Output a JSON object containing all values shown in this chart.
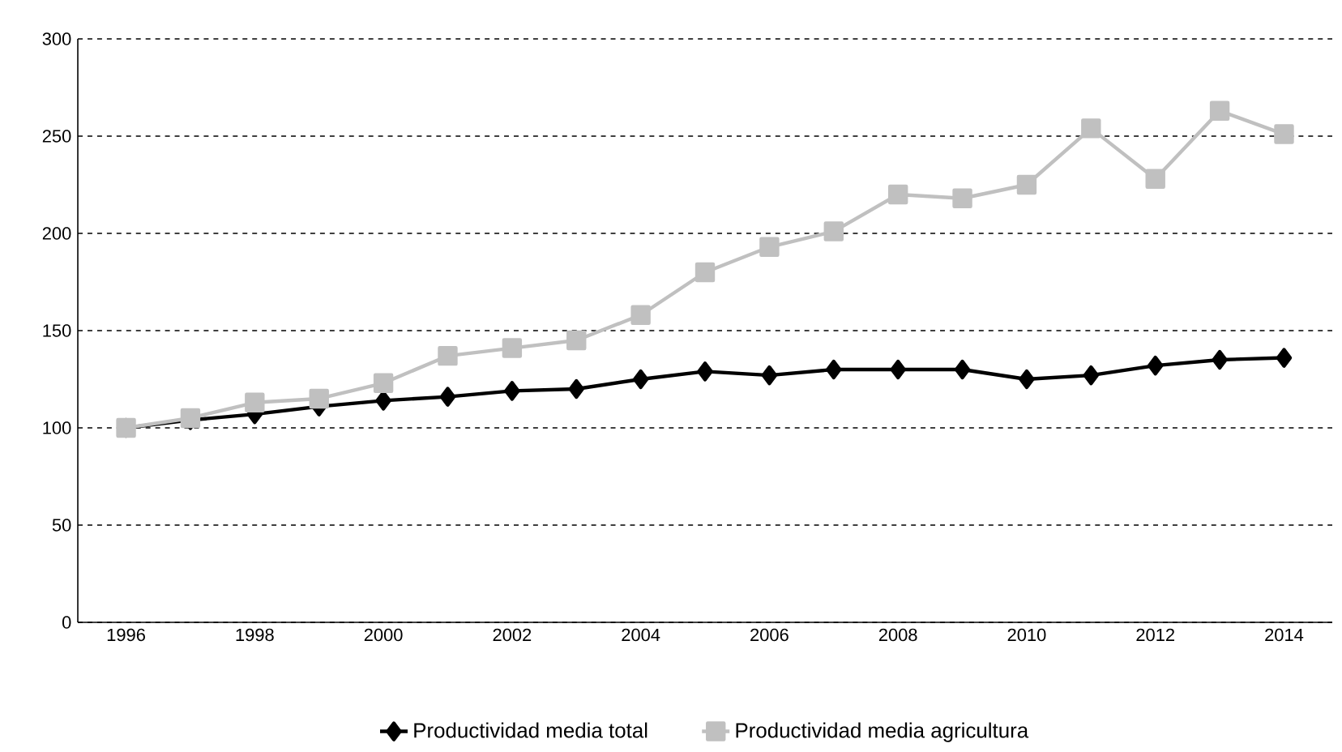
{
  "chart_data": {
    "type": "line",
    "x": [
      1996,
      1997,
      1998,
      1999,
      2000,
      2001,
      2002,
      2003,
      2004,
      2005,
      2006,
      2007,
      2008,
      2009,
      2010,
      2011,
      2012,
      2013,
      2014
    ],
    "series": [
      {
        "name": "Productividad media total",
        "color": "#000000",
        "marker": "diamond",
        "values": [
          100,
          104,
          107,
          111,
          114,
          116,
          119,
          120,
          125,
          129,
          127,
          130,
          130,
          130,
          125,
          127,
          132,
          135,
          136
        ]
      },
      {
        "name": "Productividad media agricultura",
        "color": "#c0c0c0",
        "marker": "square",
        "values": [
          100,
          105,
          113,
          115,
          123,
          137,
          141,
          145,
          158,
          180,
          193,
          201,
          220,
          218,
          225,
          254,
          228,
          263,
          251
        ]
      }
    ],
    "xlim": [
      1995.25,
      2014.75
    ],
    "xticks": [
      1996,
      1998,
      2000,
      2002,
      2004,
      2006,
      2008,
      2010,
      2012,
      2014
    ],
    "ylim": [
      0,
      300
    ],
    "yticks": [
      0,
      50,
      100,
      150,
      200,
      250,
      300
    ],
    "grid": "y",
    "legend": "bottom",
    "line_style": "solid"
  }
}
